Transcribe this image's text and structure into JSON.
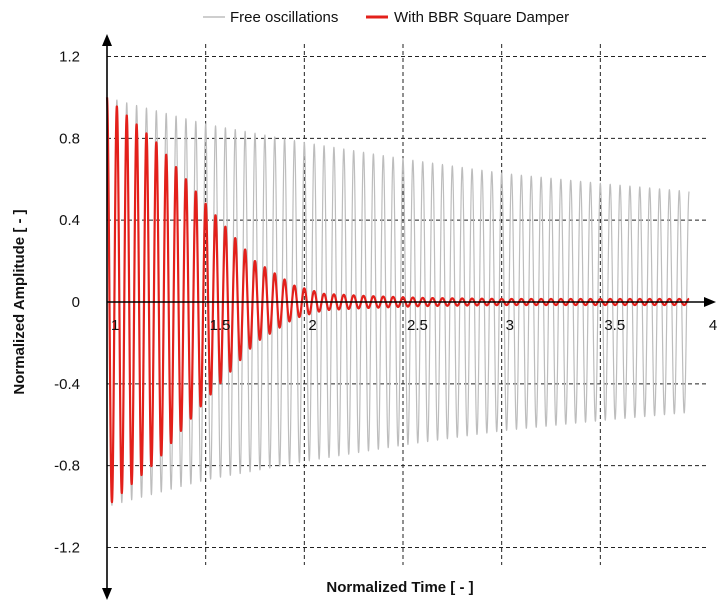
{
  "chart_data": {
    "type": "line",
    "title": "",
    "xlabel": "Normalized Time  [ - ]",
    "ylabel": "Normalized Amplitude  [ - ]",
    "xlim": [
      1,
      4
    ],
    "ylim": [
      -1.2,
      1.2
    ],
    "x_ticks": [
      "1",
      "1.5",
      "2",
      "2.5",
      "3",
      "3.5",
      "4"
    ],
    "y_ticks": [
      "1.2",
      "0.8",
      "0.4",
      "0",
      "-0.4",
      "-0.8",
      "-1.2"
    ],
    "grid": true,
    "legend_position": "top",
    "oscillation_cycles": 59,
    "series": [
      {
        "name": "Free oscillations",
        "color": "#bdbdbd",
        "envelope": {
          "x": [
            1.0,
            1.5,
            2.0,
            2.5,
            3.0,
            3.5,
            3.95
          ],
          "amplitude": [
            1.0,
            0.87,
            0.78,
            0.7,
            0.63,
            0.58,
            0.54
          ]
        }
      },
      {
        "name": "With BBR Square Damper",
        "color": "#e3201b",
        "envelope": {
          "x": [
            1.0,
            1.25,
            1.5,
            1.75,
            1.95,
            2.1,
            2.3,
            2.6,
            3.0,
            3.5,
            3.95
          ],
          "amplitude": [
            1.0,
            0.78,
            0.48,
            0.2,
            0.08,
            0.04,
            0.03,
            0.02,
            0.015,
            0.015,
            0.015
          ]
        }
      }
    ]
  }
}
